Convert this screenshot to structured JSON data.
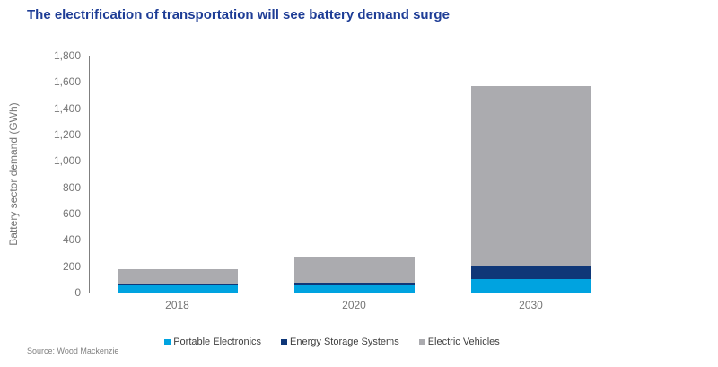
{
  "title": "The electrification of transportation will see battery demand surge",
  "source": "Source: Wood Mackenzie",
  "colors": {
    "title_blue": "#1E3D96",
    "axis_gray": "#7F7F7F",
    "tick_text": "#757575",
    "legend_text": "#404040",
    "source_text": "#808080"
  },
  "chart_data": {
    "type": "bar",
    "stacked": true,
    "title": "The electrification of transportation will see battery demand surge",
    "categories": [
      "2018",
      "2020",
      "2030"
    ],
    "series": [
      {
        "name": "Portable Electronics",
        "color": "#00A3E0",
        "values": [
          55,
          55,
          105
        ]
      },
      {
        "name": "Energy Storage Systems",
        "color": "#0F3778",
        "values": [
          15,
          20,
          100
        ]
      },
      {
        "name": "Electric Vehicles",
        "color": "#ABABAF",
        "values": [
          105,
          195,
          1360
        ]
      }
    ],
    "xlabel": "",
    "ylabel": "Battery sector demand (GWh)",
    "ylim": [
      0,
      1800
    ],
    "ytick_step": 200,
    "ytick_labels": [
      "0",
      "200",
      "400",
      "600",
      "800",
      "1,000",
      "1,200",
      "1,400",
      "1,600",
      "1,800"
    ],
    "grid": false,
    "legend_position": "bottom"
  }
}
